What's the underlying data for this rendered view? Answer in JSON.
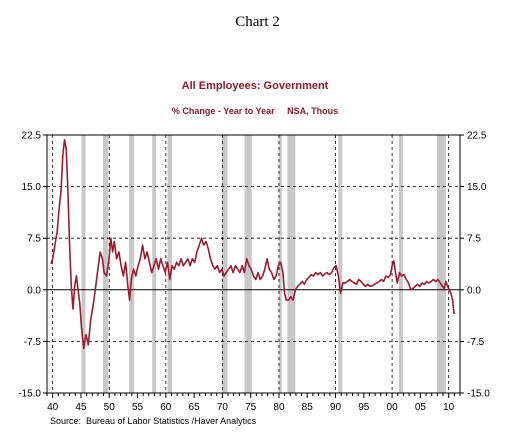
{
  "header": {
    "chart_label": "Chart 2"
  },
  "colors": {
    "series": "#9b1b30",
    "recession": "#c8c8c8",
    "grid": "#000000",
    "title": "#8b1a2e"
  },
  "chart_data": {
    "type": "line",
    "title": "All Employees: Government",
    "subtitle": "% Change - Year to Year     NSA, Thous",
    "source": "Source:  Bureau of Labor Statistics /Haver Analytics",
    "xlabel": "",
    "ylabel": "",
    "xlim": [
      1939,
      2012
    ],
    "ylim": [
      -15,
      22.5
    ],
    "y_ticks": [
      22.5,
      15.0,
      7.5,
      0.0,
      -7.5,
      -15.0
    ],
    "y_tick_labels_left": [
      "22.5",
      "15.0",
      "7.5",
      "0.0",
      "-7.5",
      "-15.0"
    ],
    "y_tick_labels_right": [
      "22.5",
      "15.0",
      "7.5",
      "0.0",
      "-7.5",
      "-15.0"
    ],
    "x_ticks": [
      1940,
      1945,
      1950,
      1955,
      1960,
      1965,
      1970,
      1975,
      1980,
      1985,
      1990,
      1995,
      2000,
      2005,
      2010
    ],
    "x_tick_labels": [
      "40",
      "45",
      "50",
      "55",
      "60",
      "65",
      "70",
      "75",
      "80",
      "85",
      "90",
      "95",
      "00",
      "05",
      "10"
    ],
    "dashed_vertical_years": [
      1940,
      1950,
      1960,
      1970,
      1980,
      1990,
      2000,
      2010
    ],
    "dashed_horizontal_values": [
      15,
      7.5,
      -7.5
    ],
    "grid": true,
    "recessions": [
      [
        1945.1,
        1945.8
      ],
      [
        1948.9,
        1949.8
      ],
      [
        1953.5,
        1954.4
      ],
      [
        1957.6,
        1958.3
      ],
      [
        1960.3,
        1961.1
      ],
      [
        1969.9,
        1970.9
      ],
      [
        1973.9,
        1975.2
      ],
      [
        1980.0,
        1980.5
      ],
      [
        1981.5,
        1982.9
      ],
      [
        1990.5,
        1991.2
      ],
      [
        2001.2,
        2001.9
      ],
      [
        2007.9,
        2009.5
      ]
    ],
    "series": [
      {
        "values": [
          [
            1939.7,
            3.8
          ],
          [
            1940.0,
            4.5
          ],
          [
            1940.4,
            6.5
          ],
          [
            1940.8,
            8.5
          ],
          [
            1941.1,
            11.5
          ],
          [
            1941.5,
            14.5
          ],
          [
            1941.8,
            19.5
          ],
          [
            1942.1,
            21.8
          ],
          [
            1942.4,
            20.5
          ],
          [
            1942.7,
            14.5
          ],
          [
            1943.0,
            6.5
          ],
          [
            1943.3,
            0.5
          ],
          [
            1943.6,
            -2.8
          ],
          [
            1943.9,
            0.5
          ],
          [
            1944.2,
            2.0
          ],
          [
            1944.5,
            0.0
          ],
          [
            1944.8,
            -2.0
          ],
          [
            1945.1,
            -5.5
          ],
          [
            1945.5,
            -8.5
          ],
          [
            1945.9,
            -6.5
          ],
          [
            1946.3,
            -8.0
          ],
          [
            1946.7,
            -4.5
          ],
          [
            1947.2,
            -2.0
          ],
          [
            1947.6,
            0.5
          ],
          [
            1948.0,
            3.0
          ],
          [
            1948.4,
            5.5
          ],
          [
            1948.8,
            4.5
          ],
          [
            1949.1,
            2.5
          ],
          [
            1949.5,
            2.0
          ],
          [
            1949.9,
            4.0
          ],
          [
            1950.3,
            7.5
          ],
          [
            1950.6,
            5.5
          ],
          [
            1950.9,
            7.0
          ],
          [
            1951.3,
            4.5
          ],
          [
            1951.7,
            5.5
          ],
          [
            1952.1,
            3.5
          ],
          [
            1952.5,
            2.0
          ],
          [
            1952.9,
            4.0
          ],
          [
            1953.3,
            0.5
          ],
          [
            1953.6,
            -1.5
          ],
          [
            1953.9,
            1.5
          ],
          [
            1954.3,
            3.0
          ],
          [
            1954.7,
            2.0
          ],
          [
            1955.1,
            3.5
          ],
          [
            1955.5,
            4.5
          ],
          [
            1955.9,
            6.5
          ],
          [
            1956.3,
            4.5
          ],
          [
            1956.7,
            5.5
          ],
          [
            1957.1,
            4.0
          ],
          [
            1957.5,
            2.5
          ],
          [
            1957.9,
            3.5
          ],
          [
            1958.3,
            4.5
          ],
          [
            1958.7,
            3.0
          ],
          [
            1959.1,
            4.5
          ],
          [
            1959.5,
            3.5
          ],
          [
            1959.9,
            2.5
          ],
          [
            1960.3,
            4.0
          ],
          [
            1960.7,
            1.5
          ],
          [
            1961.1,
            3.5
          ],
          [
            1961.5,
            3.0
          ],
          [
            1961.9,
            4.0
          ],
          [
            1962.3,
            3.5
          ],
          [
            1962.7,
            4.5
          ],
          [
            1963.1,
            3.5
          ],
          [
            1963.5,
            4.0
          ],
          [
            1963.9,
            4.5
          ],
          [
            1964.3,
            3.5
          ],
          [
            1964.7,
            4.5
          ],
          [
            1965.1,
            4.0
          ],
          [
            1965.5,
            5.5
          ],
          [
            1965.9,
            6.5
          ],
          [
            1966.3,
            7.5
          ],
          [
            1966.7,
            6.5
          ],
          [
            1967.1,
            7.0
          ],
          [
            1967.5,
            6.0
          ],
          [
            1967.9,
            4.5
          ],
          [
            1968.3,
            3.5
          ],
          [
            1968.7,
            3.0
          ],
          [
            1969.1,
            3.5
          ],
          [
            1969.5,
            2.5
          ],
          [
            1969.9,
            3.0
          ],
          [
            1970.3,
            2.0
          ],
          [
            1970.7,
            2.5
          ],
          [
            1971.1,
            3.0
          ],
          [
            1971.5,
            3.5
          ],
          [
            1971.9,
            2.5
          ],
          [
            1972.3,
            3.5
          ],
          [
            1972.7,
            3.0
          ],
          [
            1973.1,
            2.5
          ],
          [
            1973.5,
            3.5
          ],
          [
            1973.9,
            2.5
          ],
          [
            1974.3,
            4.5
          ],
          [
            1974.7,
            3.5
          ],
          [
            1975.1,
            3.0
          ],
          [
            1975.5,
            2.0
          ],
          [
            1975.9,
            1.5
          ],
          [
            1976.3,
            2.5
          ],
          [
            1976.7,
            1.5
          ],
          [
            1977.1,
            2.0
          ],
          [
            1977.5,
            3.0
          ],
          [
            1977.9,
            4.5
          ],
          [
            1978.3,
            3.0
          ],
          [
            1978.7,
            2.5
          ],
          [
            1979.1,
            1.5
          ],
          [
            1979.5,
            2.0
          ],
          [
            1979.9,
            3.5
          ],
          [
            1980.3,
            4.0
          ],
          [
            1980.7,
            2.5
          ],
          [
            1981.0,
            -0.5
          ],
          [
            1981.3,
            -1.5
          ],
          [
            1981.7,
            -1.5
          ],
          [
            1982.1,
            -1.0
          ],
          [
            1982.5,
            -1.5
          ],
          [
            1982.9,
            0.0
          ],
          [
            1983.3,
            0.5
          ],
          [
            1983.7,
            0.8
          ],
          [
            1984.1,
            1.2
          ],
          [
            1984.5,
            0.8
          ],
          [
            1984.9,
            1.5
          ],
          [
            1985.3,
            1.8
          ],
          [
            1985.7,
            2.2
          ],
          [
            1986.1,
            2.0
          ],
          [
            1986.5,
            2.5
          ],
          [
            1986.9,
            2.2
          ],
          [
            1987.3,
            2.5
          ],
          [
            1987.7,
            2.0
          ],
          [
            1988.1,
            2.3
          ],
          [
            1988.5,
            2.5
          ],
          [
            1988.9,
            2.2
          ],
          [
            1989.3,
            2.5
          ],
          [
            1989.7,
            3.2
          ],
          [
            1990.1,
            3.5
          ],
          [
            1990.5,
            2.0
          ],
          [
            1990.9,
            -0.5
          ],
          [
            1991.3,
            1.0
          ],
          [
            1991.7,
            1.0
          ],
          [
            1992.1,
            1.2
          ],
          [
            1992.5,
            1.5
          ],
          [
            1992.9,
            1.2
          ],
          [
            1993.3,
            1.0
          ],
          [
            1993.7,
            0.8
          ],
          [
            1994.1,
            1.5
          ],
          [
            1994.5,
            1.2
          ],
          [
            1994.9,
            0.8
          ],
          [
            1995.3,
            0.5
          ],
          [
            1995.7,
            0.8
          ],
          [
            1996.1,
            0.5
          ],
          [
            1996.5,
            0.6
          ],
          [
            1996.9,
            0.8
          ],
          [
            1997.3,
            1.0
          ],
          [
            1997.7,
            1.2
          ],
          [
            1998.1,
            1.5
          ],
          [
            1998.5,
            1.2
          ],
          [
            1998.9,
            2.0
          ],
          [
            1999.3,
            1.8
          ],
          [
            1999.7,
            2.2
          ],
          [
            2000.0,
            3.5
          ],
          [
            2000.3,
            4.2
          ],
          [
            2000.6,
            2.5
          ],
          [
            2000.9,
            1.0
          ],
          [
            2001.3,
            2.5
          ],
          [
            2001.7,
            2.0
          ],
          [
            2002.1,
            2.2
          ],
          [
            2002.5,
            1.5
          ],
          [
            2002.9,
            1.0
          ],
          [
            2003.3,
            0.0
          ],
          [
            2003.7,
            0.2
          ],
          [
            2004.1,
            0.5
          ],
          [
            2004.5,
            0.8
          ],
          [
            2004.9,
            0.5
          ],
          [
            2005.3,
            1.0
          ],
          [
            2005.7,
            0.8
          ],
          [
            2006.1,
            1.2
          ],
          [
            2006.5,
            1.0
          ],
          [
            2006.9,
            1.2
          ],
          [
            2007.3,
            1.5
          ],
          [
            2007.7,
            1.2
          ],
          [
            2008.1,
            1.5
          ],
          [
            2008.5,
            1.0
          ],
          [
            2008.9,
            0.5
          ],
          [
            2009.2,
            0.2
          ],
          [
            2009.5,
            1.2
          ],
          [
            2009.8,
            0.5
          ],
          [
            2010.1,
            0.0
          ],
          [
            2010.4,
            -0.5
          ],
          [
            2010.7,
            -1.5
          ],
          [
            2010.95,
            -3.5
          ]
        ]
      }
    ]
  }
}
